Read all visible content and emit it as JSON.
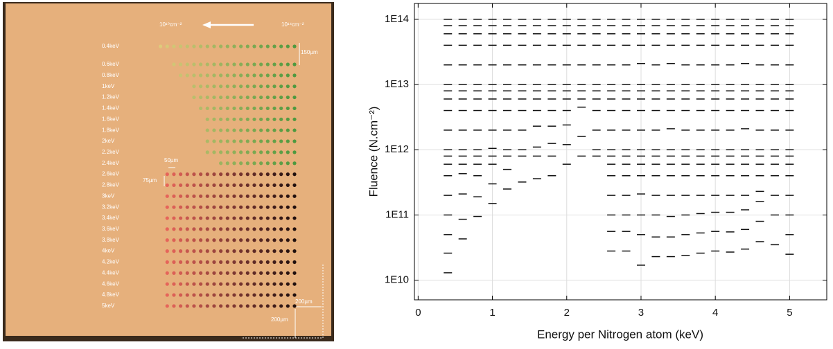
{
  "photo": {
    "row_labels": [
      "0.4keV",
      "0.6keV",
      "0.8keV",
      "1keV",
      "1.2keV",
      "1.4keV",
      "1.6keV",
      "1.8keV",
      "2keV",
      "2.2keV",
      "2.4keV",
      "2.6keV",
      "2.8keV",
      "3keV",
      "3.2keV",
      "3.4keV",
      "3.6keV",
      "3.8keV",
      "4keV",
      "4.2keV",
      "4.4keV",
      "4.6keV",
      "4.8keV",
      "5keV"
    ],
    "fluence_low": "10¹⁰cm⁻²",
    "fluence_high": "10¹⁴cm⁻²",
    "row_gap": "150µm",
    "dot_pitch": "50µm",
    "line_pitch": "75µm",
    "margin_x": "200µm",
    "margin_y": "200µm"
  },
  "chart_data": {
    "type": "scatter",
    "x_label": "Energy per Nitrogen atom (keV)",
    "y_label": "Fluence (N.cm⁻²)",
    "xlim": [
      -0.05,
      5.5
    ],
    "xticks": [
      0,
      1,
      2,
      3,
      4,
      5
    ],
    "ylim": [
      5000000000.0,
      175000000000000.0
    ],
    "log_y": true,
    "yticks": [
      {
        "value": 10000000000.0,
        "label": "1E10"
      },
      {
        "value": 100000000000.0,
        "label": "1E11"
      },
      {
        "value": 1000000000000.0,
        "label": "1E12"
      },
      {
        "value": 10000000000000.0,
        "label": "1E13"
      },
      {
        "value": 100000000000000.0,
        "label": "1E14"
      }
    ],
    "grid": true,
    "color": "#111111",
    "x": [
      0.4,
      0.6,
      0.8,
      1.0,
      1.2,
      1.4,
      1.6,
      1.8,
      2.0,
      2.2,
      2.4,
      2.6,
      2.8,
      3.0,
      3.2,
      3.4,
      3.6,
      3.8,
      4.0,
      4.2,
      4.4,
      4.6,
      4.8,
      5.0
    ],
    "values": [
      [
        100000000000000.0,
        80000000000000.0,
        60000000000000.0,
        40000000000000.0,
        20000000000000.0,
        10000000000000.0,
        8000000000000.0,
        6000000000000.0,
        4000000000000.0,
        2000000000000.0,
        1000000000000.0,
        800000000000.0,
        600000000000.0,
        400000000000.0,
        200000000000.0,
        100000000000.0,
        50000000000.0,
        26000000000.0,
        13000000000.0
      ],
      [
        100000000000000.0,
        80000000000000.0,
        60000000000000.0,
        40000000000000.0,
        20000000000000.0,
        10000000000000.0,
        8000000000000.0,
        6000000000000.0,
        4000000000000.0,
        2000000000000.0,
        1000000000000.0,
        800000000000.0,
        600000000000.0,
        430000000000.0,
        210000000000.0,
        86000000000.0,
        43000000000.0
      ],
      [
        100000000000000.0,
        80000000000000.0,
        60000000000000.0,
        40000000000000.0,
        20000000000000.0,
        10000000000000.0,
        8000000000000.0,
        6000000000000.0,
        4000000000000.0,
        2000000000000.0,
        1000000000000.0,
        800000000000.0,
        600000000000.0,
        400000000000.0,
        190000000000.0,
        95000000000.0
      ],
      [
        100000000000000.0,
        80000000000000.0,
        60000000000000.0,
        40000000000000.0,
        20000000000000.0,
        10000000000000.0,
        8000000000000.0,
        6000000000000.0,
        4000000000000.0,
        2000000000000.0,
        1050000000000.0,
        800000000000.0,
        600000000000.0,
        300000000000.0,
        150000000000.0
      ],
      [
        100000000000000.0,
        80000000000000.0,
        60000000000000.0,
        40000000000000.0,
        20000000000000.0,
        10000000000000.0,
        8000000000000.0,
        6000000000000.0,
        4000000000000.0,
        2000000000000.0,
        1000000000000.0,
        800000000000.0,
        500000000000.0,
        250000000000.0
      ],
      [
        100000000000000.0,
        80000000000000.0,
        60000000000000.0,
        40000000000000.0,
        20000000000000.0,
        10000000000000.0,
        8000000000000.0,
        6000000000000.0,
        4000000000000.0,
        2000000000000.0,
        1000000000000.0,
        800000000000.0,
        320000000000.0
      ],
      [
        100000000000000.0,
        80000000000000.0,
        60000000000000.0,
        40000000000000.0,
        20000000000000.0,
        10000000000000.0,
        8000000000000.0,
        6000000000000.0,
        4000000000000.0,
        2300000000000.0,
        1100000000000.0,
        800000000000.0,
        360000000000.0
      ],
      [
        100000000000000.0,
        80000000000000.0,
        60000000000000.0,
        40000000000000.0,
        20000000000000.0,
        10000000000000.0,
        8000000000000.0,
        6000000000000.0,
        4000000000000.0,
        2300000000000.0,
        1250000000000.0,
        800000000000.0,
        400000000000.0
      ],
      [
        100000000000000.0,
        80000000000000.0,
        60000000000000.0,
        40000000000000.0,
        20000000000000.0,
        10000000000000.0,
        8000000000000.0,
        6000000000000.0,
        4000000000000.0,
        2400000000000.0,
        1200000000000.0,
        600000000000.0
      ],
      [
        100000000000000.0,
        80000000000000.0,
        60000000000000.0,
        40000000000000.0,
        20000000000000.0,
        10000000000000.0,
        8000000000000.0,
        6000000000000.0,
        4500000000000.0,
        1600000000000.0,
        800000000000.0
      ],
      [
        100000000000000.0,
        80000000000000.0,
        60000000000000.0,
        40000000000000.0,
        20000000000000.0,
        10000000000000.0,
        8000000000000.0,
        6000000000000.0,
        4000000000000.0,
        2000000000000.0,
        1000000000000.0,
        800000000000.0
      ],
      [
        100000000000000.0,
        80000000000000.0,
        60000000000000.0,
        40000000000000.0,
        20000000000000.0,
        10000000000000.0,
        8000000000000.0,
        6000000000000.0,
        4000000000000.0,
        2000000000000.0,
        1000000000000.0,
        800000000000.0,
        600000000000.0,
        400000000000.0,
        200000000000.0,
        100000000000.0,
        56000000000.0,
        28000000000.0
      ],
      [
        100000000000000.0,
        80000000000000.0,
        60000000000000.0,
        40000000000000.0,
        20000000000000.0,
        10000000000000.0,
        8000000000000.0,
        6000000000000.0,
        4000000000000.0,
        2000000000000.0,
        1000000000000.0,
        800000000000.0,
        600000000000.0,
        400000000000.0,
        200000000000.0,
        100000000000.0,
        56000000000.0,
        28000000000.0
      ],
      [
        100000000000000.0,
        80000000000000.0,
        60000000000000.0,
        40000000000000.0,
        21000000000000.0,
        10000000000000.0,
        8000000000000.0,
        6000000000000.0,
        4000000000000.0,
        2000000000000.0,
        1000000000000.0,
        800000000000.0,
        600000000000.0,
        400000000000.0,
        210000000000.0,
        100000000000.0,
        50000000000.0,
        17000000000.0
      ],
      [
        100000000000000.0,
        80000000000000.0,
        60000000000000.0,
        40000000000000.0,
        20000000000000.0,
        10000000000000.0,
        8000000000000.0,
        6000000000000.0,
        4000000000000.0,
        2000000000000.0,
        1000000000000.0,
        800000000000.0,
        600000000000.0,
        400000000000.0,
        200000000000.0,
        100000000000.0,
        46000000000.0,
        23000000000.0
      ],
      [
        100000000000000.0,
        80000000000000.0,
        60000000000000.0,
        40000000000000.0,
        21000000000000.0,
        10000000000000.0,
        8000000000000.0,
        6000000000000.0,
        4000000000000.0,
        2100000000000.0,
        1000000000000.0,
        800000000000.0,
        600000000000.0,
        400000000000.0,
        200000000000.0,
        95000000000.0,
        46000000000.0,
        23000000000.0
      ],
      [
        100000000000000.0,
        80000000000000.0,
        60000000000000.0,
        40000000000000.0,
        20000000000000.0,
        10000000000000.0,
        8000000000000.0,
        6000000000000.0,
        4000000000000.0,
        2000000000000.0,
        1000000000000.0,
        800000000000.0,
        600000000000.0,
        400000000000.0,
        200000000000.0,
        100000000000.0,
        50000000000.0,
        24000000000.0
      ],
      [
        100000000000000.0,
        80000000000000.0,
        60000000000000.0,
        40000000000000.0,
        20000000000000.0,
        10000000000000.0,
        8000000000000.0,
        6000000000000.0,
        4000000000000.0,
        2000000000000.0,
        1000000000000.0,
        800000000000.0,
        600000000000.0,
        400000000000.0,
        200000000000.0,
        105000000000.0,
        53000000000.0,
        26000000000.0
      ],
      [
        100000000000000.0,
        80000000000000.0,
        60000000000000.0,
        40000000000000.0,
        20000000000000.0,
        10000000000000.0,
        8000000000000.0,
        6000000000000.0,
        4000000000000.0,
        2000000000000.0,
        1000000000000.0,
        800000000000.0,
        600000000000.0,
        400000000000.0,
        200000000000.0,
        110000000000.0,
        56000000000.0,
        28000000000.0
      ],
      [
        100000000000000.0,
        80000000000000.0,
        60000000000000.0,
        40000000000000.0,
        20000000000000.0,
        10000000000000.0,
        8000000000000.0,
        6000000000000.0,
        4000000000000.0,
        2000000000000.0,
        1000000000000.0,
        800000000000.0,
        600000000000.0,
        400000000000.0,
        200000000000.0,
        110000000000.0,
        55000000000.0,
        27000000000.0
      ],
      [
        100000000000000.0,
        80000000000000.0,
        60000000000000.0,
        40000000000000.0,
        21000000000000.0,
        10000000000000.0,
        8000000000000.0,
        6000000000000.0,
        4000000000000.0,
        2100000000000.0,
        1000000000000.0,
        800000000000.0,
        600000000000.0,
        400000000000.0,
        200000000000.0,
        120000000000.0,
        60000000000.0,
        30000000000.0
      ],
      [
        100000000000000.0,
        80000000000000.0,
        60000000000000.0,
        40000000000000.0,
        20000000000000.0,
        10000000000000.0,
        8000000000000.0,
        6000000000000.0,
        4000000000000.0,
        2000000000000.0,
        1000000000000.0,
        800000000000.0,
        600000000000.0,
        400000000000.0,
        230000000000.0,
        160000000000.0,
        80000000000.0,
        39000000000.0
      ],
      [
        100000000000000.0,
        80000000000000.0,
        60000000000000.0,
        40000000000000.0,
        20000000000000.0,
        10000000000000.0,
        8000000000000.0,
        6000000000000.0,
        4000000000000.0,
        2000000000000.0,
        1000000000000.0,
        800000000000.0,
        600000000000.0,
        400000000000.0,
        200000000000.0,
        100000000000.0,
        35000000000.0
      ],
      [
        100000000000000.0,
        80000000000000.0,
        60000000000000.0,
        40000000000000.0,
        20000000000000.0,
        10000000000000.0,
        8000000000000.0,
        6000000000000.0,
        4000000000000.0,
        2000000000000.0,
        1000000000000.0,
        800000000000.0,
        600000000000.0,
        400000000000.0,
        200000000000.0,
        100000000000.0,
        50000000000.0,
        25000000000.0
      ]
    ]
  }
}
